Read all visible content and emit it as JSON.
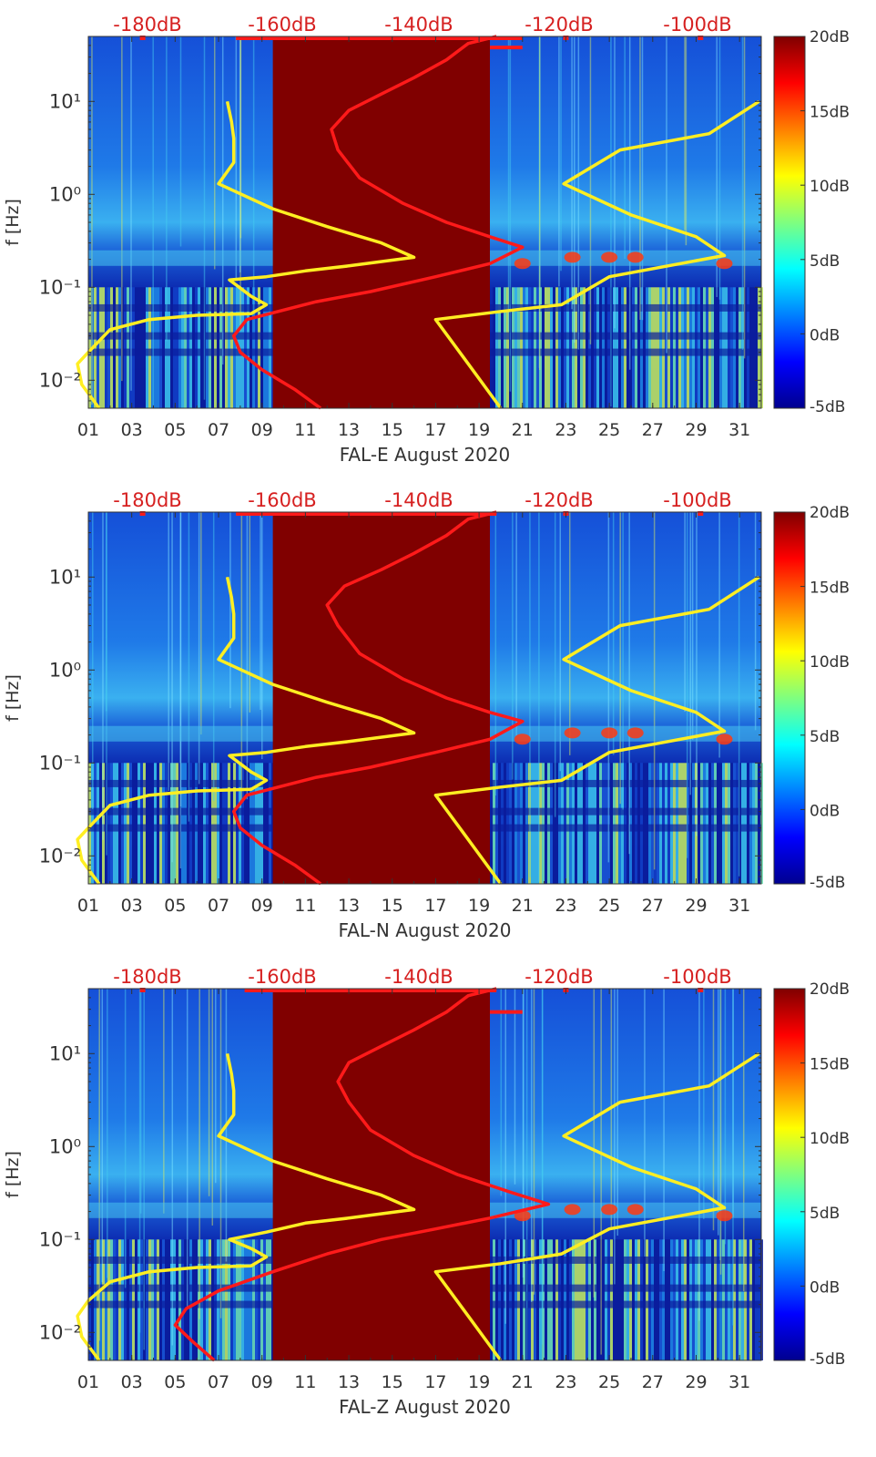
{
  "chart_data": [
    {
      "type": "heatmap",
      "component": "FAL-E",
      "xlabel": "FAL-E August 2020",
      "ylabel": "f [Hz]",
      "x_unit": "day of August 2020",
      "x_range": [
        1,
        32
      ],
      "x_ticks": [
        "01",
        "03",
        "05",
        "07",
        "09",
        "11",
        "13",
        "15",
        "17",
        "19",
        "21",
        "23",
        "25",
        "27",
        "29",
        "31"
      ],
      "y_scale": "log",
      "y_range_hz": [
        0.005,
        50
      ],
      "y_ticks": [
        "10⁻²",
        "10⁻¹",
        "10⁰",
        "10¹"
      ],
      "top_axis_labels": [
        "-180dB",
        "-160dB",
        "-140dB",
        "-120dB",
        "-100dB"
      ],
      "colorbar": {
        "min_db": -5,
        "max_db": 20,
        "ticks": [
          "20dB",
          "15dB",
          "10dB",
          "5dB",
          "0dB",
          "-5dB"
        ]
      },
      "gap_days": [
        9.5,
        19.5
      ],
      "yellow_curve": [
        [
          1.5,
          0.005
        ],
        [
          0.7,
          0.009
        ],
        [
          0.5,
          0.015
        ],
        [
          1.0,
          0.02
        ],
        [
          2.0,
          0.035
        ],
        [
          3.8,
          0.045
        ],
        [
          6.0,
          0.05
        ],
        [
          8.5,
          0.052
        ],
        [
          9.2,
          0.065
        ],
        [
          8.5,
          0.08
        ],
        [
          7.5,
          0.12
        ],
        [
          9.2,
          0.13
        ],
        [
          11.0,
          0.15
        ],
        [
          13.0,
          0.17
        ],
        [
          16.0,
          0.21
        ],
        [
          14.5,
          0.3
        ],
        [
          12.0,
          0.45
        ],
        [
          9.5,
          0.7
        ],
        [
          7.0,
          1.3
        ],
        [
          7.7,
          2.2
        ],
        [
          7.7,
          4
        ],
        [
          7.6,
          6
        ],
        [
          7.4,
          10
        ]
      ],
      "yellow_curve_right": [
        [
          20.0,
          0.005
        ],
        [
          18.5,
          0.015
        ],
        [
          17.0,
          0.045
        ],
        [
          20.0,
          0.055
        ],
        [
          22.8,
          0.065
        ],
        [
          25.0,
          0.13
        ],
        [
          30.3,
          0.22
        ],
        [
          29.0,
          0.35
        ],
        [
          26.0,
          0.6
        ],
        [
          22.9,
          1.3
        ],
        [
          25.5,
          3
        ],
        [
          29.6,
          4.5
        ],
        [
          31.9,
          10
        ]
      ],
      "red_curve": [
        [
          11.7,
          0.005
        ],
        [
          10.5,
          0.008
        ],
        [
          9.0,
          0.013
        ],
        [
          8.0,
          0.02
        ],
        [
          7.7,
          0.03
        ],
        [
          8.3,
          0.045
        ],
        [
          11.5,
          0.07
        ],
        [
          14.0,
          0.09
        ],
        [
          17.0,
          0.13
        ],
        [
          19.5,
          0.18
        ],
        [
          21.0,
          0.27
        ],
        [
          19.5,
          0.35
        ],
        [
          17.5,
          0.5
        ],
        [
          15.5,
          0.8
        ],
        [
          13.5,
          1.5
        ],
        [
          12.5,
          3
        ],
        [
          12.2,
          5
        ],
        [
          13.0,
          8
        ],
        [
          14.5,
          12
        ],
        [
          16.0,
          18
        ],
        [
          17.5,
          28
        ],
        [
          18.5,
          42
        ],
        [
          19.8,
          50
        ]
      ],
      "red_top_line": {
        "from_day": 7.8,
        "to_day": 21.0
      },
      "red_stub": {
        "from_day": 19.5,
        "to_day": 21.0,
        "f_hz": 38
      }
    },
    {
      "type": "heatmap",
      "component": "FAL-N",
      "xlabel": "FAL-N August 2020",
      "ylabel": "f [Hz]",
      "x_unit": "day of August 2020",
      "x_range": [
        1,
        32
      ],
      "x_ticks": [
        "01",
        "03",
        "05",
        "07",
        "09",
        "11",
        "13",
        "15",
        "17",
        "19",
        "21",
        "23",
        "25",
        "27",
        "29",
        "31"
      ],
      "y_scale": "log",
      "y_range_hz": [
        0.005,
        50
      ],
      "y_ticks": [
        "10⁻²",
        "10⁻¹",
        "10⁰",
        "10¹"
      ],
      "top_axis_labels": [
        "-180dB",
        "-160dB",
        "-140dB",
        "-120dB",
        "-100dB"
      ],
      "colorbar": {
        "min_db": -5,
        "max_db": 20,
        "ticks": [
          "20dB",
          "15dB",
          "10dB",
          "5dB",
          "0dB",
          "-5dB"
        ]
      },
      "gap_days": [
        9.5,
        19.5
      ],
      "yellow_curve": [
        [
          1.5,
          0.005
        ],
        [
          0.7,
          0.009
        ],
        [
          0.5,
          0.015
        ],
        [
          1.0,
          0.02
        ],
        [
          2.0,
          0.035
        ],
        [
          3.8,
          0.045
        ],
        [
          6.0,
          0.05
        ],
        [
          8.5,
          0.052
        ],
        [
          9.2,
          0.065
        ],
        [
          8.5,
          0.08
        ],
        [
          7.5,
          0.12
        ],
        [
          9.2,
          0.13
        ],
        [
          11.0,
          0.15
        ],
        [
          13.0,
          0.17
        ],
        [
          16.0,
          0.21
        ],
        [
          14.5,
          0.3
        ],
        [
          12.0,
          0.45
        ],
        [
          9.5,
          0.7
        ],
        [
          7.0,
          1.3
        ],
        [
          7.7,
          2.2
        ],
        [
          7.7,
          4
        ],
        [
          7.6,
          6
        ],
        [
          7.4,
          10
        ]
      ],
      "yellow_curve_right": [
        [
          20.0,
          0.005
        ],
        [
          18.5,
          0.015
        ],
        [
          17.0,
          0.045
        ],
        [
          20.0,
          0.055
        ],
        [
          22.8,
          0.065
        ],
        [
          25.0,
          0.13
        ],
        [
          30.3,
          0.22
        ],
        [
          29.0,
          0.35
        ],
        [
          26.0,
          0.6
        ],
        [
          22.9,
          1.3
        ],
        [
          25.5,
          3
        ],
        [
          29.6,
          4.5
        ],
        [
          31.9,
          10
        ]
      ],
      "red_curve": [
        [
          11.7,
          0.005
        ],
        [
          10.5,
          0.008
        ],
        [
          9.0,
          0.013
        ],
        [
          8.0,
          0.02
        ],
        [
          7.7,
          0.03
        ],
        [
          8.3,
          0.045
        ],
        [
          11.5,
          0.07
        ],
        [
          14.0,
          0.09
        ],
        [
          17.0,
          0.13
        ],
        [
          19.5,
          0.18
        ],
        [
          21.0,
          0.28
        ],
        [
          19.5,
          0.35
        ],
        [
          17.5,
          0.5
        ],
        [
          15.5,
          0.8
        ],
        [
          13.5,
          1.5
        ],
        [
          12.5,
          3
        ],
        [
          12.0,
          5
        ],
        [
          12.8,
          8
        ],
        [
          14.5,
          12
        ],
        [
          16.0,
          18
        ],
        [
          17.5,
          28
        ],
        [
          18.5,
          42
        ],
        [
          19.8,
          50
        ]
      ],
      "red_top_line": {
        "from_day": 7.8,
        "to_day": 19.8
      },
      "red_stub": null
    },
    {
      "type": "heatmap",
      "component": "FAL-Z",
      "xlabel": "FAL-Z August 2020",
      "ylabel": "f [Hz]",
      "x_unit": "day of August 2020",
      "x_range": [
        1,
        32
      ],
      "x_ticks": [
        "01",
        "03",
        "05",
        "07",
        "09",
        "11",
        "13",
        "15",
        "17",
        "19",
        "21",
        "23",
        "25",
        "27",
        "29",
        "31"
      ],
      "y_scale": "log",
      "y_range_hz": [
        0.005,
        50
      ],
      "y_ticks": [
        "10⁻²",
        "10⁻¹",
        "10⁰",
        "10¹"
      ],
      "top_axis_labels": [
        "-180dB",
        "-160dB",
        "-140dB",
        "-120dB",
        "-100dB"
      ],
      "colorbar": {
        "min_db": -5,
        "max_db": 20,
        "ticks": [
          "20dB",
          "15dB",
          "10dB",
          "5dB",
          "0dB",
          "-5dB"
        ]
      },
      "gap_days": [
        9.5,
        19.5
      ],
      "yellow_curve": [
        [
          1.5,
          0.005
        ],
        [
          0.7,
          0.009
        ],
        [
          0.5,
          0.015
        ],
        [
          1.0,
          0.022
        ],
        [
          2.0,
          0.035
        ],
        [
          3.8,
          0.045
        ],
        [
          6.0,
          0.05
        ],
        [
          8.5,
          0.052
        ],
        [
          9.2,
          0.065
        ],
        [
          8.5,
          0.08
        ],
        [
          7.5,
          0.1
        ],
        [
          9.2,
          0.12
        ],
        [
          11.0,
          0.15
        ],
        [
          13.0,
          0.17
        ],
        [
          16.0,
          0.21
        ],
        [
          14.5,
          0.3
        ],
        [
          12.0,
          0.45
        ],
        [
          9.5,
          0.7
        ],
        [
          7.0,
          1.3
        ],
        [
          7.7,
          2.2
        ],
        [
          7.7,
          4
        ],
        [
          7.6,
          6
        ],
        [
          7.4,
          10
        ]
      ],
      "yellow_curve_right": [
        [
          20.0,
          0.005
        ],
        [
          18.5,
          0.015
        ],
        [
          17.0,
          0.045
        ],
        [
          20.0,
          0.055
        ],
        [
          22.8,
          0.07
        ],
        [
          25.0,
          0.13
        ],
        [
          30.3,
          0.22
        ],
        [
          29.0,
          0.35
        ],
        [
          26.0,
          0.6
        ],
        [
          22.9,
          1.3
        ],
        [
          25.5,
          3
        ],
        [
          29.6,
          4.5
        ],
        [
          31.9,
          10
        ]
      ],
      "red_curve": [
        [
          6.8,
          0.005
        ],
        [
          5.8,
          0.008
        ],
        [
          5.0,
          0.012
        ],
        [
          5.5,
          0.018
        ],
        [
          7.0,
          0.028
        ],
        [
          9.5,
          0.045
        ],
        [
          12.0,
          0.07
        ],
        [
          14.5,
          0.1
        ],
        [
          17.0,
          0.13
        ],
        [
          19.5,
          0.17
        ],
        [
          22.2,
          0.24
        ],
        [
          20.5,
          0.32
        ],
        [
          18.0,
          0.5
        ],
        [
          16.0,
          0.8
        ],
        [
          14.0,
          1.5
        ],
        [
          13.0,
          3
        ],
        [
          12.5,
          5
        ],
        [
          13.0,
          8
        ],
        [
          14.5,
          12
        ],
        [
          16.0,
          18
        ],
        [
          17.5,
          28
        ],
        [
          18.5,
          42
        ],
        [
          19.8,
          50
        ]
      ],
      "red_top_line": {
        "from_day": 8.2,
        "to_day": 19.8
      },
      "red_stub": {
        "from_day": 19.5,
        "to_day": 21.0,
        "f_hz": 28
      }
    }
  ],
  "colors": {
    "gap_fill": "#800000",
    "yellow_curve": "#ffee22",
    "red_curve": "#ff1a1a",
    "top_label": "#d62020",
    "background_low": "#0a1a9a",
    "axis": "#333333"
  }
}
